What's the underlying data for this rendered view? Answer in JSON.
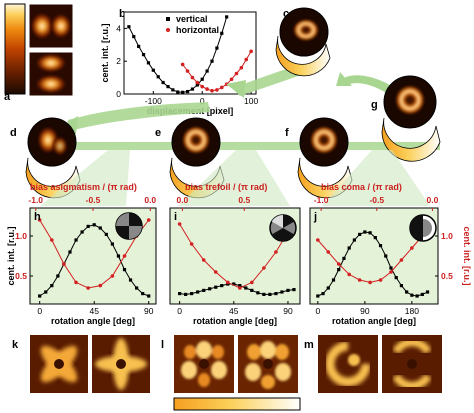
{
  "panels": {
    "a": "a",
    "b": "b",
    "c": "c",
    "d": "d",
    "e": "e",
    "f": "f",
    "g": "g",
    "h": "h",
    "i": "i",
    "j": "j",
    "k": "k",
    "l": "l",
    "m": "m"
  },
  "colormap": {
    "stops": [
      "#1a0a00",
      "#5a1a00",
      "#b53a00",
      "#f08a10",
      "#fbd05a",
      "#fff6d8"
    ]
  },
  "bias_labels": {
    "h": "bias asigmatism / (π rad)",
    "i": "bias trefoil / (π rad)",
    "j": "bias coma / (π rad)"
  },
  "bias_ticks": {
    "h": [
      "-1.0",
      "-0.5",
      "0.0"
    ],
    "i": [
      "0.0",
      "0.5"
    ],
    "j": [
      "-1.0",
      "-0.5",
      "0.0"
    ]
  },
  "chart_data": [
    {
      "id": "b",
      "type": "scatter",
      "xlabel": "displacement [pixel]",
      "ylabel": "cent. int. [r.u.]",
      "xticks": [
        "-100",
        "0",
        "100"
      ],
      "yticks": [
        "0",
        "2",
        "4"
      ],
      "xlim": [
        -160,
        110
      ],
      "ylim": [
        0,
        5
      ],
      "legend_position": "top",
      "series": [
        {
          "name": "vertical",
          "color": "#000000",
          "x": [
            -150,
            -140,
            -130,
            -120,
            -110,
            -100,
            -90,
            -80,
            -70,
            -60,
            -50,
            -40,
            -30,
            -20,
            -10,
            0,
            10,
            20,
            30,
            40,
            50
          ],
          "y": [
            4.1,
            3.5,
            2.9,
            2.4,
            1.9,
            1.45,
            1.05,
            0.7,
            0.45,
            0.25,
            0.12,
            0.1,
            0.15,
            0.3,
            0.55,
            0.9,
            1.4,
            2.0,
            2.8,
            3.7,
            4.7
          ]
        },
        {
          "name": "horizontal",
          "color": "#d42020",
          "x": [
            -40,
            -30,
            -20,
            -10,
            0,
            10,
            20,
            30,
            40,
            50,
            60,
            70,
            80,
            90,
            100
          ],
          "y": [
            1.8,
            1.4,
            1.0,
            0.7,
            0.45,
            0.3,
            0.2,
            0.25,
            0.4,
            0.6,
            0.9,
            1.25,
            1.6,
            2.1,
            2.6
          ]
        }
      ]
    },
    {
      "id": "h",
      "type": "line",
      "xlabel": "rotation angle [deg]",
      "ylabel": "cent. int. [r.u.]",
      "xticks": [
        "0",
        "45",
        "90"
      ],
      "yticks": [
        "0.5",
        "1.0"
      ],
      "xlim": [
        -8,
        96
      ],
      "ylim": [
        0.15,
        1.35
      ],
      "series": [
        {
          "color": "#000000",
          "x": [
            0,
            5,
            10,
            15,
            20,
            25,
            30,
            35,
            40,
            45,
            50,
            55,
            60,
            65,
            70,
            75,
            80,
            85,
            90
          ],
          "y": [
            0.25,
            0.3,
            0.38,
            0.5,
            0.65,
            0.8,
            0.95,
            1.05,
            1.12,
            1.14,
            1.1,
            1.02,
            0.9,
            0.75,
            0.58,
            0.45,
            0.35,
            0.28,
            0.25
          ]
        },
        {
          "color": "#d42020",
          "x": [
            0,
            10,
            20,
            30,
            40,
            50,
            60,
            70,
            80,
            90
          ],
          "y": [
            1.2,
            0.95,
            0.65,
            0.42,
            0.35,
            0.38,
            0.5,
            0.75,
            1.0,
            1.2
          ]
        }
      ]
    },
    {
      "id": "i",
      "type": "line",
      "xlabel": "rotation angle [deg]",
      "ylabel": "",
      "xticks": [
        "0",
        "45",
        "90"
      ],
      "yticks": [],
      "xlim": [
        -8,
        100
      ],
      "ylim": [
        0.15,
        1.35
      ],
      "series": [
        {
          "color": "#000000",
          "x": [
            0,
            5,
            10,
            15,
            20,
            25,
            30,
            35,
            40,
            45,
            50,
            55,
            60,
            65,
            70,
            75,
            80,
            85,
            90,
            95
          ],
          "y": [
            0.28,
            0.27,
            0.28,
            0.3,
            0.32,
            0.34,
            0.36,
            0.38,
            0.4,
            0.4,
            0.38,
            0.35,
            0.32,
            0.29,
            0.27,
            0.27,
            0.28,
            0.3,
            0.32,
            0.33
          ]
        },
        {
          "color": "#d42020",
          "x": [
            0,
            10,
            20,
            30,
            40,
            50,
            60,
            70,
            80,
            90
          ],
          "y": [
            1.15,
            0.9,
            0.7,
            0.55,
            0.42,
            0.35,
            0.42,
            0.6,
            0.8,
            1.05
          ]
        }
      ]
    },
    {
      "id": "j",
      "type": "line",
      "xlabel": "rotation angle [deg]",
      "ylabel": "cent. int. [r.u.]",
      "ylabel_side": "right",
      "xticks": [
        "0",
        "90",
        "180"
      ],
      "yticks": [
        "0.5",
        "1.0"
      ],
      "xlim": [
        -15,
        230
      ],
      "ylim": [
        0.15,
        1.35
      ],
      "series": [
        {
          "color": "#000000",
          "x": [
            0,
            10,
            20,
            30,
            40,
            50,
            60,
            70,
            80,
            90,
            100,
            110,
            120,
            130,
            140,
            150,
            160,
            170,
            180,
            190,
            200,
            210
          ],
          "y": [
            0.25,
            0.28,
            0.35,
            0.45,
            0.58,
            0.72,
            0.85,
            0.95,
            1.02,
            1.05,
            1.04,
            0.98,
            0.88,
            0.75,
            0.6,
            0.48,
            0.38,
            0.3,
            0.26,
            0.25,
            0.27,
            0.3
          ]
        },
        {
          "color": "#d42020",
          "x": [
            0,
            20,
            40,
            60,
            80,
            100,
            120,
            140,
            160,
            180,
            200,
            220
          ],
          "y": [
            0.95,
            0.8,
            0.65,
            0.52,
            0.45,
            0.42,
            0.45,
            0.55,
            0.7,
            0.85,
            1.0,
            1.1
          ]
        }
      ]
    }
  ]
}
